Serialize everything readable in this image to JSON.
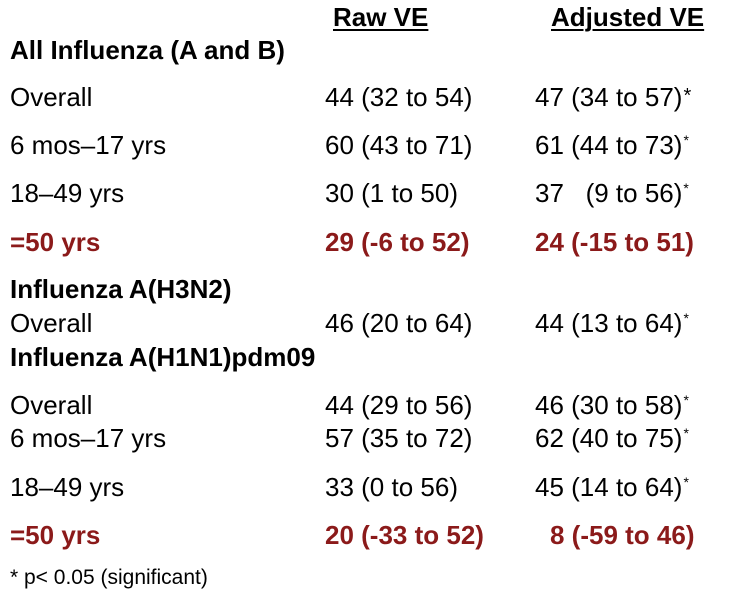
{
  "headers": {
    "raw": "Raw VE",
    "adjusted": "Adjusted VE"
  },
  "sections": {
    "all": "All Influenza (A and B)",
    "h3n2": "Influenza A(H3N2)",
    "h1n1": "Influenza A(H1N1)pdm09"
  },
  "rows": [
    {
      "label": "Overall",
      "raw": "44 (32 to 54)",
      "adjusted": "47 (34 to 57)",
      "star": "*"
    },
    {
      "label": "6 mos–17 yrs",
      "raw": "60 (43 to 71)",
      "adjusted": "61 (44 to 73)",
      "star": "*"
    },
    {
      "label": "18–49 yrs",
      "raw": "30 (1 to 50)",
      "adjusted": "37   (9 to 56)",
      "star": "*"
    },
    {
      "label": "=50 yrs",
      "raw": "29 (-6 to 52)",
      "adjusted": "24 (-15 to 51)",
      "star": ""
    },
    {
      "label": "Overall",
      "raw": "46 (20 to 64)",
      "adjusted": "44 (13 to 64)",
      "star": "*"
    },
    {
      "label": "Overall",
      "raw": "44 (29 to 56)",
      "adjusted": "46 (30 to 58)",
      "star": "*"
    },
    {
      "label": "6 mos–17 yrs",
      "raw": "57 (35 to 72)",
      "adjusted": "62 (40 to 75)",
      "star": "*"
    },
    {
      "label": "18–49 yrs",
      "raw": "33 (0 to 56)",
      "adjusted": "45 (14 to 64)",
      "star": "*"
    },
    {
      "label": "=50 yrs",
      "raw": "20 (-33 to 52)",
      "adjusted": "8 (-59 to 46)",
      "star": ""
    }
  ],
  "footnote": "* p< 0.05 (significant)",
  "colors": {
    "highlight": "#8b1a1a",
    "text": "#000000"
  }
}
